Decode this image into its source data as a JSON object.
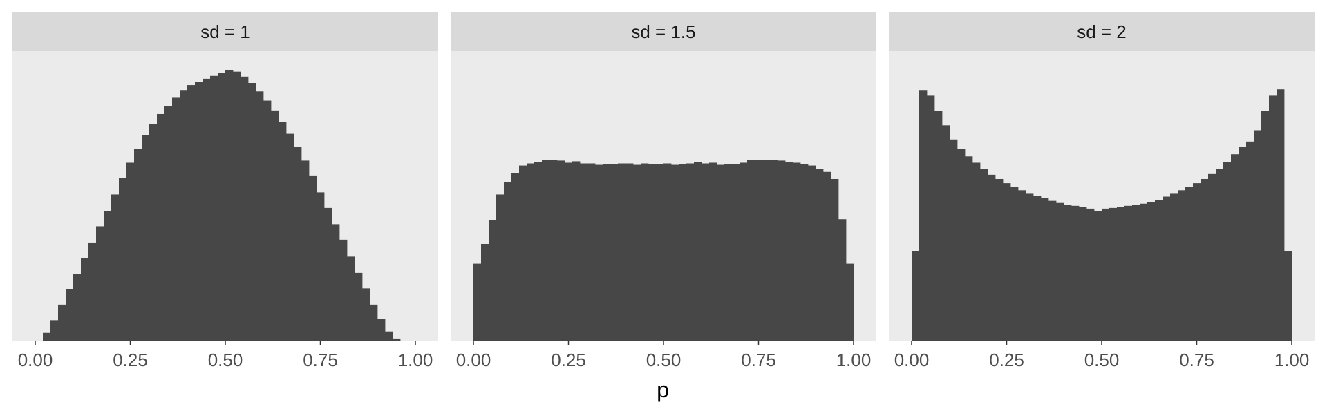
{
  "chart_data": {
    "type": "bar",
    "xlabel": "p",
    "ylabel": "",
    "xlim": [
      0,
      1
    ],
    "x_ticks": [
      0,
      0.25,
      0.5,
      0.75,
      1
    ],
    "x_tick_labels": [
      "0.00",
      "0.25",
      "0.50",
      "0.75",
      "1.00"
    ],
    "bin_width": 0.02,
    "y_axis_visible": false,
    "grid": false,
    "panels": [
      {
        "strip_label": "sd = 1",
        "bin_centers": [
          0.01,
          0.03,
          0.05,
          0.07,
          0.09,
          0.11,
          0.13,
          0.15,
          0.17,
          0.19,
          0.21,
          0.23,
          0.25,
          0.27,
          0.29,
          0.31,
          0.33,
          0.35,
          0.37,
          0.39,
          0.41,
          0.43,
          0.45,
          0.47,
          0.49,
          0.51,
          0.53,
          0.55,
          0.57,
          0.59,
          0.61,
          0.63,
          0.65,
          0.67,
          0.69,
          0.71,
          0.73,
          0.75,
          0.77,
          0.79,
          0.81,
          0.83,
          0.85,
          0.87,
          0.89,
          0.91,
          0.93,
          0.95,
          0.97,
          0.99
        ],
        "counts": [
          1,
          12,
          30,
          52,
          74,
          95,
          118,
          140,
          163,
          184,
          208,
          231,
          253,
          273,
          292,
          308,
          322,
          333,
          345,
          356,
          363,
          367,
          372,
          376,
          380,
          384,
          382,
          375,
          366,
          354,
          341,
          327,
          311,
          294,
          275,
          256,
          234,
          211,
          189,
          166,
          144,
          120,
          97,
          75,
          52,
          32,
          14,
          4,
          0,
          0
        ]
      },
      {
        "strip_label": "sd = 1.5",
        "bin_centers": [
          0.01,
          0.03,
          0.05,
          0.07,
          0.09,
          0.11,
          0.13,
          0.15,
          0.17,
          0.19,
          0.21,
          0.23,
          0.25,
          0.27,
          0.29,
          0.31,
          0.33,
          0.35,
          0.37,
          0.39,
          0.41,
          0.43,
          0.45,
          0.47,
          0.49,
          0.51,
          0.53,
          0.55,
          0.57,
          0.59,
          0.61,
          0.63,
          0.65,
          0.67,
          0.69,
          0.71,
          0.73,
          0.75,
          0.77,
          0.79,
          0.81,
          0.83,
          0.85,
          0.87,
          0.89,
          0.91,
          0.93,
          0.95,
          0.97,
          0.99
        ],
        "counts": [
          110,
          138,
          172,
          208,
          226,
          238,
          249,
          252,
          254,
          257,
          257,
          256,
          253,
          255,
          252,
          252,
          250,
          251,
          251,
          252,
          252,
          250,
          252,
          251,
          251,
          252,
          250,
          251,
          252,
          254,
          252,
          253,
          250,
          251,
          251,
          253,
          257,
          257,
          257,
          257,
          256,
          254,
          253,
          251,
          249,
          244,
          240,
          230,
          173,
          110
        ]
      },
      {
        "strip_label": "sd = 2",
        "bin_centers": [
          0.01,
          0.03,
          0.05,
          0.07,
          0.09,
          0.11,
          0.13,
          0.15,
          0.17,
          0.19,
          0.21,
          0.23,
          0.25,
          0.27,
          0.29,
          0.31,
          0.33,
          0.35,
          0.37,
          0.39,
          0.41,
          0.43,
          0.45,
          0.47,
          0.49,
          0.51,
          0.53,
          0.55,
          0.57,
          0.59,
          0.61,
          0.63,
          0.65,
          0.67,
          0.69,
          0.71,
          0.73,
          0.75,
          0.77,
          0.79,
          0.81,
          0.83,
          0.85,
          0.87,
          0.89,
          0.91,
          0.93,
          0.95,
          0.97,
          0.99
        ],
        "counts": [
          128,
          356,
          348,
          326,
          306,
          286,
          273,
          262,
          253,
          244,
          236,
          230,
          224,
          219,
          214,
          209,
          206,
          203,
          199,
          196,
          193,
          192,
          190,
          188,
          184,
          188,
          189,
          190,
          192,
          193,
          195,
          197,
          200,
          205,
          209,
          214,
          219,
          224,
          230,
          237,
          244,
          254,
          265,
          275,
          283,
          299,
          326,
          348,
          357,
          128
        ]
      }
    ]
  }
}
